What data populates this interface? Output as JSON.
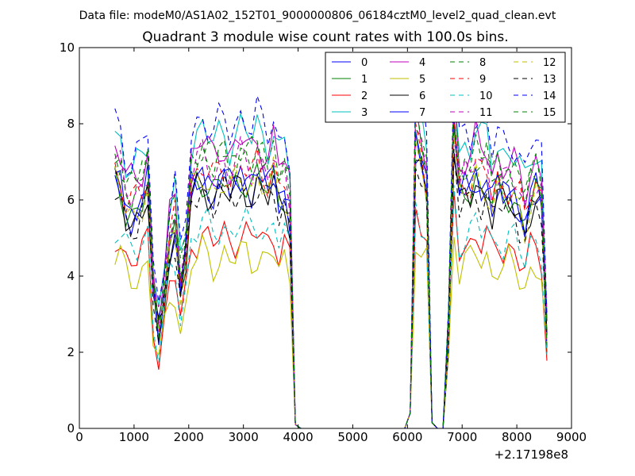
{
  "chart_data": {
    "type": "line",
    "suptitle": "Data file: modeM0/AS1A02_152T01_9000000806_06184cztM0_level2_quad_clean.evt",
    "title": "Quadrant 3 module wise count rates with 100.0s bins.",
    "xlabel": "",
    "ylabel": "",
    "x_offset_label": "+2.17198e8",
    "xlim": [
      0,
      9000
    ],
    "ylim": [
      0,
      10
    ],
    "x_ticks": [
      0,
      1000,
      2000,
      3000,
      4000,
      5000,
      6000,
      7000,
      8000,
      9000
    ],
    "y_ticks": [
      0,
      2,
      4,
      6,
      8,
      10
    ],
    "x_tick_labels": [
      "0",
      "1000",
      "2000",
      "3000",
      "4000",
      "5000",
      "6000",
      "7000",
      "8000",
      "9000"
    ],
    "y_tick_labels": [
      "0",
      "2",
      "4",
      "6",
      "8",
      "10"
    ],
    "grid": false,
    "legend_location": "top-right",
    "legend_columns": 4,
    "x_points": [
      650,
      750,
      850,
      950,
      1050,
      1150,
      1250,
      1350,
      1450,
      1550,
      1650,
      1750,
      1850,
      1950,
      2050,
      2150,
      2250,
      2350,
      2450,
      2550,
      2650,
      2750,
      2850,
      2950,
      3050,
      3150,
      3250,
      3350,
      3450,
      3550,
      3650,
      3750,
      3850,
      3950,
      4050,
      4500,
      5000,
      5500,
      5950,
      6050,
      6150,
      6250,
      6350,
      6450,
      6550,
      6650,
      6750,
      6850,
      6950,
      7050,
      7150,
      7250,
      7350,
      7450,
      7550,
      7650,
      7750,
      7850,
      7950,
      8050,
      8150,
      8250,
      8350,
      8450,
      8550
    ],
    "base_profile": [
      6.5,
      6.3,
      5.7,
      5.6,
      5.7,
      5.9,
      6.3,
      3.5,
      2.5,
      3.5,
      4.8,
      5.2,
      3.6,
      4.5,
      6.2,
      6.4,
      6.6,
      6.4,
      6.2,
      6.4,
      6.5,
      6.2,
      6.4,
      6.6,
      6.5,
      6.3,
      6.6,
      6.4,
      6.2,
      6.6,
      6.0,
      6.2,
      5.6,
      0.1,
      0.0,
      0.0,
      0.0,
      0.0,
      0.0,
      0.4,
      7.3,
      6.8,
      6.2,
      0.15,
      0.0,
      0.0,
      2.5,
      7.6,
      6.0,
      6.2,
      6.2,
      6.6,
      6.3,
      6.4,
      5.8,
      6.2,
      6.0,
      6.1,
      6.0,
      5.7,
      5.3,
      5.9,
      6.1,
      5.8,
      2.4
    ],
    "series": [
      {
        "name": "0",
        "color": "#0000ff",
        "dashed": false,
        "scale": 1.0,
        "phase": 0.0
      },
      {
        "name": "1",
        "color": "#008000",
        "dashed": false,
        "scale": 1.0,
        "phase": 1.0
      },
      {
        "name": "2",
        "color": "#ff0000",
        "dashed": false,
        "scale": 0.78,
        "phase": 2.0
      },
      {
        "name": "3",
        "color": "#00bfbf",
        "dashed": false,
        "scale": 1.2,
        "phase": 3.0
      },
      {
        "name": "4",
        "color": "#bf00bf",
        "dashed": false,
        "scale": 1.15,
        "phase": 4.0
      },
      {
        "name": "5",
        "color": "#bfbf00",
        "dashed": false,
        "scale": 0.7,
        "phase": 5.0
      },
      {
        "name": "6",
        "color": "#000000",
        "dashed": false,
        "scale": 0.97,
        "phase": 6.0
      },
      {
        "name": "7",
        "color": "#0000ff",
        "dashed": false,
        "scale": 1.02,
        "phase": 7.0
      },
      {
        "name": "8",
        "color": "#008000",
        "dashed": true,
        "scale": 1.1,
        "phase": 8.0
      },
      {
        "name": "9",
        "color": "#ff0000",
        "dashed": true,
        "scale": 1.05,
        "phase": 9.0
      },
      {
        "name": "10",
        "color": "#00bfbf",
        "dashed": true,
        "scale": 0.82,
        "phase": 10.0
      },
      {
        "name": "11",
        "color": "#bf00bf",
        "dashed": true,
        "scale": 1.08,
        "phase": 11.0
      },
      {
        "name": "12",
        "color": "#bfbf00",
        "dashed": true,
        "scale": 1.0,
        "phase": 12.0
      },
      {
        "name": "13",
        "color": "#000000",
        "dashed": true,
        "scale": 0.95,
        "phase": 13.0
      },
      {
        "name": "14",
        "color": "#0000ff",
        "dashed": true,
        "scale": 1.25,
        "phase": 14.0
      },
      {
        "name": "15",
        "color": "#008000",
        "dashed": true,
        "scale": 1.13,
        "phase": 15.0
      }
    ]
  }
}
